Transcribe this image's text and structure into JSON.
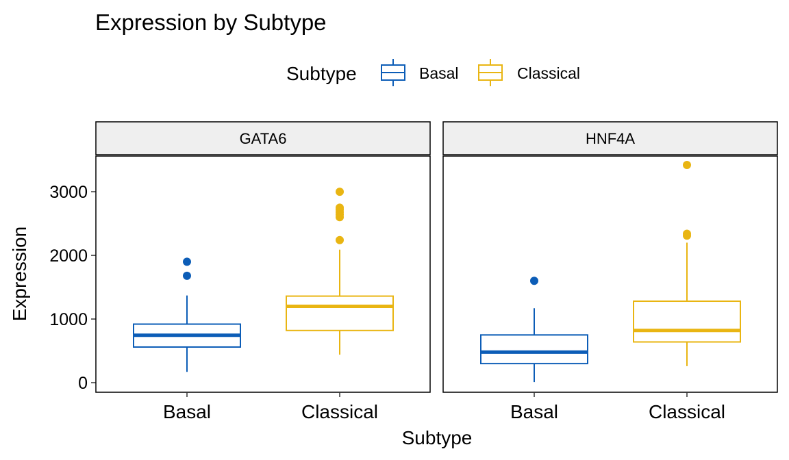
{
  "chart_data": {
    "type": "boxplot",
    "title": "Expression by Subtype",
    "xlabel": "Subtype",
    "ylabel": "Expression",
    "ylim": [
      -150,
      3560
    ],
    "yticks": [
      0,
      1000,
      2000,
      3000
    ],
    "categories": [
      "Basal",
      "Classical"
    ],
    "legend": {
      "title": "Subtype",
      "position": "top",
      "entries": [
        {
          "label": "Basal",
          "color": "#0C5DB7"
        },
        {
          "label": "Classical",
          "color": "#E9B512"
        }
      ]
    },
    "grid": false,
    "panels": [
      {
        "strip": "GATA6",
        "boxes": [
          {
            "group": "Basal",
            "whisker_low": 170,
            "q1": 560,
            "median": 745,
            "q3": 920,
            "whisker_high": 1370,
            "outliers": [
              1680,
              1900
            ]
          },
          {
            "group": "Classical",
            "whisker_low": 440,
            "q1": 820,
            "median": 1200,
            "q3": 1360,
            "whisker_high": 2090,
            "outliers": [
              2240,
              2600,
              2640,
              2680,
              2720,
              2750,
              3000
            ]
          }
        ]
      },
      {
        "strip": "HNF4A",
        "boxes": [
          {
            "group": "Basal",
            "whisker_low": 10,
            "q1": 300,
            "median": 480,
            "q3": 750,
            "whisker_high": 1170,
            "outliers": [
              1600
            ]
          },
          {
            "group": "Classical",
            "whisker_low": 260,
            "q1": 640,
            "median": 820,
            "q3": 1280,
            "whisker_high": 2200,
            "outliers": [
              2310,
              2340,
              3420
            ]
          }
        ]
      }
    ]
  }
}
